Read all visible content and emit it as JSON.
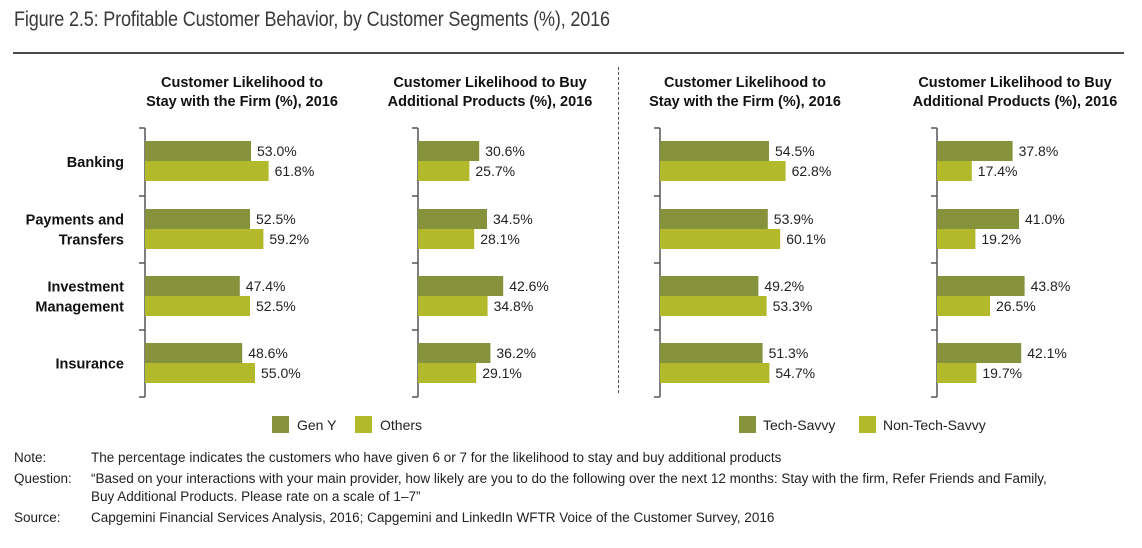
{
  "title": "Figure 2.5: Profitable Customer Behavior, by Customer Segments (%), 2016",
  "colors": {
    "dark": "#87923c",
    "light": "#b2ba2c",
    "axis": "#555555"
  },
  "chart_data": [
    {
      "type": "bar",
      "orientation": "horizontal",
      "title": [
        "Customer Likelihood to",
        "Stay with the Firm (%), 2016"
      ],
      "categories": [
        "Banking",
        "Payments and Transfers",
        "Investment Management",
        "Insurance"
      ],
      "series": [
        {
          "name": "Gen Y",
          "values": [
            53.0,
            52.5,
            47.4,
            48.6
          ]
        },
        {
          "name": "Others",
          "values": [
            61.8,
            59.2,
            52.5,
            55.0
          ]
        }
      ],
      "xlim": [
        0,
        100
      ],
      "grid": false,
      "legend": "bottom"
    },
    {
      "type": "bar",
      "orientation": "horizontal",
      "title": [
        "Customer Likelihood to Buy",
        "Additional Products (%), 2016"
      ],
      "categories": [
        "Banking",
        "Payments and Transfers",
        "Investment Management",
        "Insurance"
      ],
      "series": [
        {
          "name": "Gen Y",
          "values": [
            30.6,
            34.5,
            42.6,
            36.2
          ]
        },
        {
          "name": "Others",
          "values": [
            25.7,
            28.1,
            34.8,
            29.1
          ]
        }
      ],
      "xlim": [
        0,
        100
      ],
      "grid": false,
      "legend": "bottom"
    },
    {
      "type": "bar",
      "orientation": "horizontal",
      "title": [
        "Customer Likelihood to",
        "Stay with the Firm (%), 2016"
      ],
      "categories": [
        "Banking",
        "Payments and Transfers",
        "Investment Management",
        "Insurance"
      ],
      "series": [
        {
          "name": "Tech-Savvy",
          "values": [
            54.5,
            53.9,
            49.2,
            51.3
          ]
        },
        {
          "name": "Non-Tech-Savvy",
          "values": [
            62.8,
            60.1,
            53.3,
            54.7
          ]
        }
      ],
      "xlim": [
        0,
        100
      ],
      "grid": false,
      "legend": "bottom"
    },
    {
      "type": "bar",
      "orientation": "horizontal",
      "title": [
        "Customer Likelihood to Buy",
        "Additional Products (%), 2016"
      ],
      "categories": [
        "Banking",
        "Payments and Transfers",
        "Investment Management",
        "Insurance"
      ],
      "series": [
        {
          "name": "Tech-Savvy",
          "values": [
            37.8,
            41.0,
            43.8,
            42.1
          ]
        },
        {
          "name": "Non-Tech-Savvy",
          "values": [
            17.4,
            19.2,
            26.5,
            19.7
          ]
        }
      ],
      "xlim": [
        0,
        100
      ],
      "grid": false,
      "legend": "bottom"
    }
  ],
  "category_labels": [
    [
      "Banking"
    ],
    [
      "Payments and",
      "Transfers"
    ],
    [
      "Investment",
      "Management"
    ],
    [
      "Insurance"
    ]
  ],
  "legends": [
    {
      "items": [
        "Gen Y",
        "Others"
      ]
    },
    {
      "items": [
        "Tech-Savvy",
        "Non-Tech-Savvy"
      ]
    }
  ],
  "notes": [
    {
      "key": "Note:",
      "text": "The percentage indicates the customers who have given 6 or 7 for the likelihood to stay and buy additional products"
    },
    {
      "key": "Question:",
      "text": "“Based on your interactions with your main provider, how likely are you to do the following over the next 12 months: Stay with the firm, Refer Friends and Family, Buy Additional Products. Please rate on a scale of 1–7”"
    },
    {
      "key": "Source:",
      "text": "Capgemini Financial Services Analysis, 2016; Capgemini and LinkedIn WFTR Voice of the Customer Survey, 2016"
    }
  ]
}
